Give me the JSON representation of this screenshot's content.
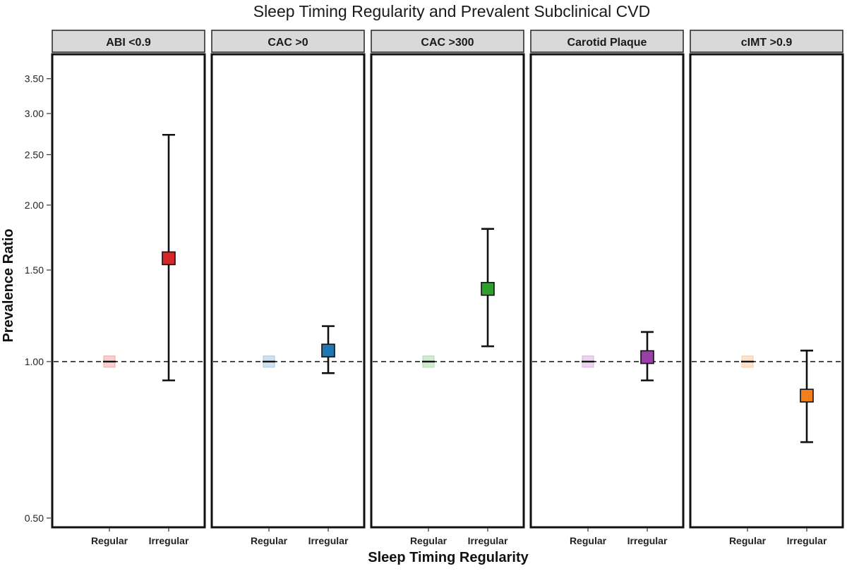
{
  "chart_data": {
    "type": "scatter",
    "title": "Sleep Timing Regularity and Prevalent Subclinical CVD",
    "xlabel": "Sleep Timing Regularity",
    "ylabel": "Prevalence Ratio",
    "yscale": "log",
    "ylim": [
      0.48,
      3.9
    ],
    "y_ticks": [
      0.5,
      1.0,
      1.5,
      2.0,
      2.5,
      3.0,
      3.5
    ],
    "y_tick_labels": [
      "0.50",
      "1.00",
      "1.50",
      "2.00",
      "2.50",
      "3.00",
      "3.50"
    ],
    "reference_line": 1.0,
    "categories": [
      "Regular",
      "Irregular"
    ],
    "grid": false,
    "panels": [
      {
        "label": "ABI <0.9",
        "color": "#d62728",
        "reference_value": 1.0,
        "estimate": 1.58,
        "ci_low": 0.92,
        "ci_high": 2.73
      },
      {
        "label": "CAC >0",
        "color": "#1f77b4",
        "reference_value": 1.0,
        "estimate": 1.05,
        "ci_low": 0.95,
        "ci_high": 1.17
      },
      {
        "label": "CAC >300",
        "color": "#2ca02c",
        "reference_value": 1.0,
        "estimate": 1.38,
        "ci_low": 1.07,
        "ci_high": 1.8
      },
      {
        "label": "Carotid Plaque",
        "color": "#9b3fa8",
        "reference_value": 1.0,
        "estimate": 1.02,
        "ci_low": 0.92,
        "ci_high": 1.14
      },
      {
        "label": "cIMT >0.9",
        "color": "#f07f1c",
        "reference_value": 1.0,
        "estimate": 0.86,
        "ci_low": 0.7,
        "ci_high": 1.05
      }
    ]
  }
}
